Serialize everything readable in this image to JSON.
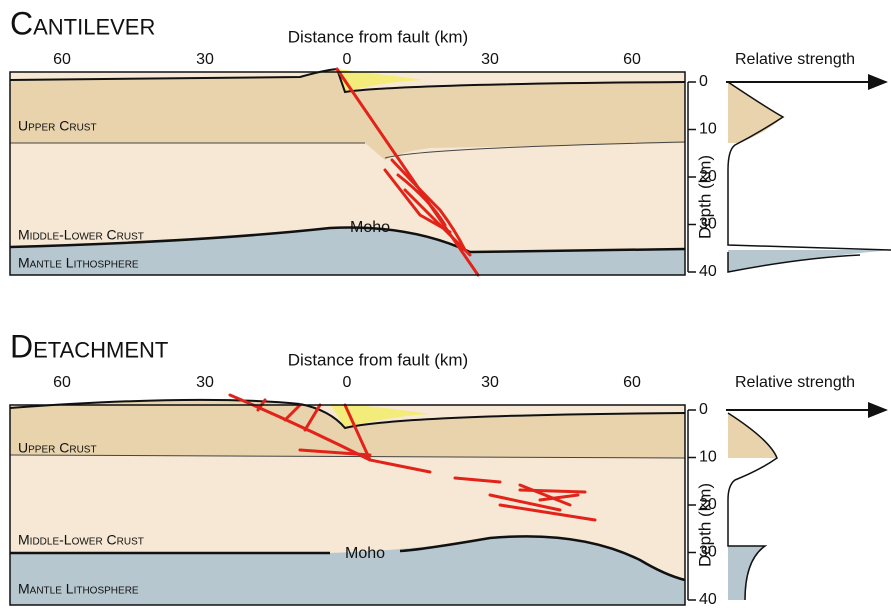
{
  "panels": [
    {
      "title": "Cantilever",
      "x_axis_label": "Distance from fault (km)",
      "x_ticks": [
        "60",
        "30",
        "0",
        "30",
        "60"
      ],
      "layers": [
        "Upper Crust",
        "Middle-Lower Crust",
        "Mantle Lithosphere"
      ],
      "moho_label": "Moho",
      "depth_axis_label": "Depth (km)",
      "depth_ticks": [
        "0",
        "10",
        "20",
        "30",
        "40"
      ],
      "strength_label": "Relative strength"
    },
    {
      "title": "Detachment",
      "x_axis_label": "Distance from fault (km)",
      "x_ticks": [
        "60",
        "30",
        "0",
        "30",
        "60"
      ],
      "layers": [
        "Upper Crust",
        "Middle-Lower Crust",
        "Mantle Lithosphere"
      ],
      "moho_label": "Moho",
      "depth_axis_label": "Depth (km)",
      "depth_ticks": [
        "0",
        "10",
        "20",
        "30",
        "40"
      ],
      "strength_label": "Relative strength"
    }
  ]
}
